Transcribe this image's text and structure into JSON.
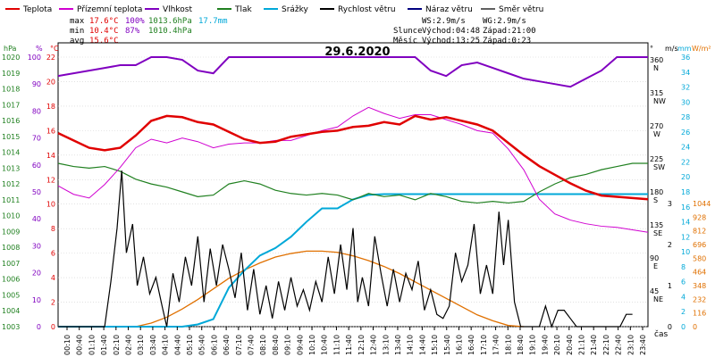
{
  "chart_data": {
    "type": "line",
    "title": "29.6.2020",
    "x_label": "čas",
    "x_ticks": [
      "00:10",
      "00:40",
      "01:10",
      "01:40",
      "02:10",
      "02:40",
      "03:10",
      "03:40",
      "04:10",
      "04:40",
      "05:10",
      "05:40",
      "06:10",
      "06:40",
      "07:10",
      "07:40",
      "08:10",
      "08:40",
      "09:10",
      "09:40",
      "10:10",
      "10:40",
      "11:10",
      "11:40",
      "12:10",
      "12:40",
      "13:10",
      "13:40",
      "14:10",
      "14:40",
      "15:10",
      "15:40",
      "16:10",
      "16:40",
      "17:10",
      "17:40",
      "18:10",
      "18:40",
      "19:10",
      "19:40",
      "20:10",
      "20:40",
      "21:10",
      "21:40",
      "22:10",
      "22:40",
      "23:10",
      "23:40"
    ],
    "legend": [
      {
        "label": "Teplota",
        "color": "#e00000"
      },
      {
        "label": "Přízemní teplota",
        "color": "#d000d0"
      },
      {
        "label": "Vlhkost",
        "color": "#8000c0"
      },
      {
        "label": "Tlak",
        "color": "#208020"
      },
      {
        "label": "Srážky",
        "color": "#00a8d8"
      },
      {
        "label": "Rychlost větru",
        "color": "#000000"
      },
      {
        "label": "Náraz větru",
        "color": "#000080"
      },
      {
        "label": "Směr větru",
        "color": "#606060"
      }
    ],
    "stats": {
      "max": {
        "label": "max",
        "temp": "17.6°C",
        "hum": "100%",
        "press": "1013.6hPa",
        "rain": "17.7mm"
      },
      "min": {
        "label": "min",
        "temp": "10.4°C",
        "hum": "87%",
        "press": "1010.4hPa"
      },
      "avg": {
        "label": "avg",
        "temp": "15.6°C"
      }
    },
    "wind_info": {
      "ws": "WS:2.9m/s",
      "wg": "WG:2.9m/s"
    },
    "sun": {
      "label": "Slunce",
      "rise": "Východ:04:48",
      "set": "Západ:21:00"
    },
    "moon": {
      "label": "Měsíc",
      "rise": "Východ:13:25",
      "set": "Západ:0:23"
    },
    "axes": {
      "hpa": {
        "unit": "hPa",
        "color": "#208020",
        "ticks": [
          "1003",
          "1004",
          "1005",
          "1006",
          "1007",
          "1008",
          "1009",
          "1010",
          "1011",
          "1012",
          "1013",
          "1014",
          "1015",
          "1016",
          "1017",
          "1018",
          "1019",
          "1020"
        ]
      },
      "pct": {
        "unit": "%",
        "color": "#8000c0",
        "ticks": [
          "0",
          "10",
          "20",
          "30",
          "40",
          "50",
          "60",
          "70",
          "80",
          "90",
          "100"
        ]
      },
      "temp": {
        "unit": "°C",
        "color": "#e00000",
        "ticks": [
          "0",
          "2",
          "4",
          "6",
          "8",
          "10",
          "12",
          "14",
          "16",
          "18",
          "20",
          "22"
        ]
      },
      "dir": {
        "unit": "°",
        "ticks": [
          "45 NE",
          "90 E",
          "135 SE",
          "180 S",
          "225 SW",
          "270 W",
          "315 NW",
          "360 N"
        ]
      },
      "ms": {
        "unit": "m/s",
        "ticks": [
          "0",
          "1",
          "2",
          "3"
        ]
      },
      "mm": {
        "unit": "mm",
        "color": "#00a8d8",
        "ticks": [
          "0",
          "2",
          "4",
          "6",
          "8",
          "10",
          "12",
          "14",
          "16",
          "18",
          "20",
          "22",
          "24",
          "26",
          "28",
          "30",
          "32",
          "34",
          "36"
        ]
      },
      "wm2": {
        "unit": "W/m²",
        "color": "#e07000",
        "ticks": [
          "0",
          "116",
          "232",
          "348",
          "464",
          "580",
          "696",
          "812",
          "928",
          "1044"
        ]
      }
    },
    "series": {
      "temperature": [
        [
          0,
          15.8
        ],
        [
          1,
          15.2
        ],
        [
          2,
          14.6
        ],
        [
          3,
          14.4
        ],
        [
          4,
          14.6
        ],
        [
          5,
          15.6
        ],
        [
          6,
          16.8
        ],
        [
          7,
          17.2
        ],
        [
          8,
          17.1
        ],
        [
          9,
          16.7
        ],
        [
          10,
          16.5
        ],
        [
          11,
          15.9
        ],
        [
          12,
          15.3
        ],
        [
          13,
          15.0
        ],
        [
          14,
          15.1
        ],
        [
          15,
          15.5
        ],
        [
          16,
          15.7
        ],
        [
          17,
          15.9
        ],
        [
          18,
          16.0
        ],
        [
          19,
          16.3
        ],
        [
          20,
          16.4
        ],
        [
          21,
          16.7
        ],
        [
          22,
          16.5
        ],
        [
          23,
          17.2
        ],
        [
          24,
          16.9
        ],
        [
          25,
          17.1
        ],
        [
          26,
          16.8
        ],
        [
          27,
          16.5
        ],
        [
          28,
          16.0
        ],
        [
          29,
          15.0
        ],
        [
          30,
          14.0
        ],
        [
          31,
          13.1
        ],
        [
          32,
          12.4
        ],
        [
          33,
          11.7
        ],
        [
          34,
          11.1
        ],
        [
          35,
          10.7
        ],
        [
          36,
          10.6
        ],
        [
          37,
          10.5
        ],
        [
          38,
          10.4
        ]
      ],
      "ground_temperature": [
        [
          0,
          11.5
        ],
        [
          1,
          10.8
        ],
        [
          2,
          10.5
        ],
        [
          3,
          11.6
        ],
        [
          4,
          13.0
        ],
        [
          5,
          14.6
        ],
        [
          6,
          15.3
        ],
        [
          7,
          15.0
        ],
        [
          8,
          15.4
        ],
        [
          9,
          15.1
        ],
        [
          10,
          14.6
        ],
        [
          11,
          14.9
        ],
        [
          12,
          15.0
        ],
        [
          13,
          15.0
        ],
        [
          14,
          15.2
        ],
        [
          15,
          15.2
        ],
        [
          16,
          15.6
        ],
        [
          17,
          16.0
        ],
        [
          18,
          16.3
        ],
        [
          19,
          17.2
        ],
        [
          20,
          17.9
        ],
        [
          21,
          17.4
        ],
        [
          22,
          17.0
        ],
        [
          23,
          17.3
        ],
        [
          24,
          17.3
        ],
        [
          25,
          16.9
        ],
        [
          26,
          16.5
        ],
        [
          27,
          16.0
        ],
        [
          28,
          15.8
        ],
        [
          29,
          14.5
        ],
        [
          30,
          12.8
        ],
        [
          31,
          10.4
        ],
        [
          32,
          9.2
        ],
        [
          33,
          8.7
        ],
        [
          34,
          8.4
        ],
        [
          35,
          8.2
        ],
        [
          36,
          8.1
        ],
        [
          37,
          7.9
        ],
        [
          38,
          7.7
        ]
      ],
      "humidity": [
        [
          0,
          93
        ],
        [
          1,
          94
        ],
        [
          2,
          95
        ],
        [
          3,
          96
        ],
        [
          4,
          97
        ],
        [
          5,
          97
        ],
        [
          6,
          100
        ],
        [
          7,
          100
        ],
        [
          8,
          99
        ],
        [
          9,
          95
        ],
        [
          10,
          94
        ],
        [
          11,
          100
        ],
        [
          12,
          100
        ],
        [
          13,
          100
        ],
        [
          14,
          100
        ],
        [
          15,
          100
        ],
        [
          16,
          100
        ],
        [
          17,
          100
        ],
        [
          18,
          100
        ],
        [
          19,
          100
        ],
        [
          20,
          100
        ],
        [
          21,
          100
        ],
        [
          22,
          100
        ],
        [
          23,
          100
        ],
        [
          24,
          95
        ],
        [
          25,
          93
        ],
        [
          26,
          97
        ],
        [
          27,
          98
        ],
        [
          28,
          96
        ],
        [
          29,
          94
        ],
        [
          30,
          92
        ],
        [
          31,
          91
        ],
        [
          32,
          90
        ],
        [
          33,
          89
        ],
        [
          34,
          92
        ],
        [
          35,
          95
        ],
        [
          36,
          100
        ],
        [
          37,
          100
        ],
        [
          38,
          100
        ]
      ],
      "pressure": [
        [
          0,
          1013.3
        ],
        [
          1,
          1013.1
        ],
        [
          2,
          1013.0
        ],
        [
          3,
          1013.1
        ],
        [
          4,
          1012.8
        ],
        [
          5,
          1012.3
        ],
        [
          6,
          1012.0
        ],
        [
          7,
          1011.8
        ],
        [
          8,
          1011.5
        ],
        [
          9,
          1011.2
        ],
        [
          10,
          1011.3
        ],
        [
          11,
          1012.0
        ],
        [
          12,
          1012.2
        ],
        [
          13,
          1012.0
        ],
        [
          14,
          1011.6
        ],
        [
          15,
          1011.4
        ],
        [
          16,
          1011.3
        ],
        [
          17,
          1011.4
        ],
        [
          18,
          1011.3
        ],
        [
          19,
          1011.0
        ],
        [
          20,
          1011.4
        ],
        [
          21,
          1011.2
        ],
        [
          22,
          1011.3
        ],
        [
          23,
          1011.0
        ],
        [
          24,
          1011.4
        ],
        [
          25,
          1011.2
        ],
        [
          26,
          1010.9
        ],
        [
          27,
          1010.8
        ],
        [
          28,
          1010.9
        ],
        [
          29,
          1010.8
        ],
        [
          30,
          1010.9
        ],
        [
          31,
          1011.5
        ],
        [
          32,
          1012.0
        ],
        [
          33,
          1012.4
        ],
        [
          34,
          1012.6
        ],
        [
          35,
          1012.9
        ],
        [
          36,
          1013.1
        ],
        [
          37,
          1013.3
        ],
        [
          38,
          1013.3
        ]
      ],
      "rain_mm": [
        [
          0,
          0
        ],
        [
          4,
          0
        ],
        [
          8,
          0
        ],
        [
          9,
          0.3
        ],
        [
          10,
          1.0
        ],
        [
          11,
          5.2
        ],
        [
          12,
          7.5
        ],
        [
          13,
          9.5
        ],
        [
          14,
          10.5
        ],
        [
          15,
          12.0
        ],
        [
          16,
          14.0
        ],
        [
          17,
          15.8
        ],
        [
          18,
          15.8
        ],
        [
          19,
          17.0
        ],
        [
          20,
          17.6
        ],
        [
          21,
          17.7
        ],
        [
          22,
          17.7
        ],
        [
          23,
          17.7
        ],
        [
          38,
          17.7
        ]
      ],
      "solar_wm2": [
        [
          5,
          0
        ],
        [
          6,
          30
        ],
        [
          7,
          80
        ],
        [
          8,
          150
        ],
        [
          9,
          230
        ],
        [
          10,
          320
        ],
        [
          11,
          410
        ],
        [
          12,
          480
        ],
        [
          13,
          540
        ],
        [
          14,
          590
        ],
        [
          15,
          620
        ],
        [
          16,
          640
        ],
        [
          17,
          640
        ],
        [
          18,
          630
        ],
        [
          19,
          600
        ],
        [
          20,
          560
        ],
        [
          21,
          510
        ],
        [
          22,
          450
        ],
        [
          23,
          380
        ],
        [
          24,
          310
        ],
        [
          25,
          240
        ],
        [
          26,
          170
        ],
        [
          27,
          100
        ],
        [
          28,
          50
        ],
        [
          29,
          10
        ],
        [
          30,
          0
        ]
      ],
      "wind_speed": [
        [
          0,
          0
        ],
        [
          1,
          0
        ],
        [
          2,
          0
        ],
        [
          3,
          0
        ],
        [
          3.4,
          1.1
        ],
        [
          3.8,
          2.4
        ],
        [
          4.1,
          3.8
        ],
        [
          4.4,
          1.8
        ],
        [
          4.8,
          2.5
        ],
        [
          5.1,
          1.0
        ],
        [
          5.5,
          1.7
        ],
        [
          5.9,
          0.8
        ],
        [
          6.3,
          1.2
        ],
        [
          6.7,
          0.5
        ],
        [
          7.0,
          0.0
        ],
        [
          7.4,
          1.3
        ],
        [
          7.8,
          0.6
        ],
        [
          8.2,
          1.7
        ],
        [
          8.6,
          1.0
        ],
        [
          9.0,
          2.2
        ],
        [
          9.4,
          0.6
        ],
        [
          9.8,
          1.9
        ],
        [
          10.2,
          1.0
        ],
        [
          10.6,
          2.0
        ],
        [
          11.0,
          1.4
        ],
        [
          11.4,
          0.7
        ],
        [
          11.8,
          1.8
        ],
        [
          12.2,
          0.4
        ],
        [
          12.6,
          1.4
        ],
        [
          13.0,
          0.3
        ],
        [
          13.4,
          1.0
        ],
        [
          13.8,
          0.2
        ],
        [
          14.2,
          1.1
        ],
        [
          14.6,
          0.4
        ],
        [
          15.0,
          1.2
        ],
        [
          15.4,
          0.5
        ],
        [
          15.8,
          0.9
        ],
        [
          16.2,
          0.4
        ],
        [
          16.6,
          1.1
        ],
        [
          17.0,
          0.6
        ],
        [
          17.4,
          1.7
        ],
        [
          17.8,
          0.8
        ],
        [
          18.2,
          2.0
        ],
        [
          18.6,
          0.9
        ],
        [
          19.0,
          2.4
        ],
        [
          19.3,
          0.6
        ],
        [
          19.6,
          1.2
        ],
        [
          20.0,
          0.5
        ],
        [
          20.4,
          2.2
        ],
        [
          20.8,
          1.3
        ],
        [
          21.2,
          0.5
        ],
        [
          21.6,
          1.4
        ],
        [
          22.0,
          0.6
        ],
        [
          22.4,
          1.3
        ],
        [
          22.8,
          0.9
        ],
        [
          23.2,
          1.6
        ],
        [
          23.6,
          0.4
        ],
        [
          24.0,
          0.9
        ],
        [
          24.4,
          0.3
        ],
        [
          24.8,
          0.2
        ],
        [
          25.2,
          0.5
        ],
        [
          25.6,
          1.8
        ],
        [
          26.0,
          1.1
        ],
        [
          26.4,
          1.5
        ],
        [
          26.8,
          2.5
        ],
        [
          27.2,
          0.8
        ],
        [
          27.6,
          1.5
        ],
        [
          28.0,
          0.8
        ],
        [
          28.4,
          2.8
        ],
        [
          28.7,
          1.5
        ],
        [
          29.0,
          2.6
        ],
        [
          29.4,
          0.6
        ],
        [
          29.8,
          0.0
        ],
        [
          30.2,
          0.0
        ],
        [
          30.6,
          0.0
        ],
        [
          31.0,
          0.0
        ],
        [
          31.4,
          0.5
        ],
        [
          31.8,
          0.0
        ],
        [
          32.2,
          0.4
        ],
        [
          32.6,
          0.4
        ],
        [
          33.0,
          0.2
        ],
        [
          33.4,
          0.0
        ],
        [
          33.8,
          0.0
        ],
        [
          34.2,
          0.0
        ],
        [
          34.6,
          0.0
        ],
        [
          35.0,
          0.0
        ],
        [
          35.4,
          0.0
        ],
        [
          35.8,
          0.0
        ],
        [
          36.2,
          0.0
        ],
        [
          36.6,
          0.3
        ],
        [
          37.0,
          0.3
        ]
      ]
    }
  }
}
